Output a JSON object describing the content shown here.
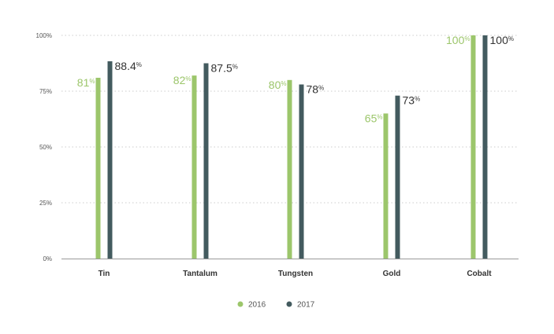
{
  "chart_data": {
    "type": "bar",
    "categories": [
      "Tin",
      "Tantalum",
      "Tungsten",
      "Gold",
      "Cobalt"
    ],
    "series": [
      {
        "name": "2016",
        "color": "#9cc66b",
        "values": [
          81,
          82,
          80,
          65,
          100
        ],
        "labels": [
          "81",
          "82",
          "80",
          "65",
          "100"
        ]
      },
      {
        "name": "2017",
        "color": "#435b5f",
        "values": [
          88.4,
          87.5,
          78,
          73,
          100
        ],
        "labels": [
          "88.4",
          "87.5",
          "78",
          "73",
          "100"
        ]
      }
    ],
    "percent_sign": "%",
    "y_ticks": [
      "0%",
      "25%",
      "50%",
      "75%",
      "100%"
    ],
    "y_tick_values": [
      0,
      25,
      50,
      75,
      100
    ],
    "ylim": [
      0,
      100
    ],
    "grid": true,
    "legend_position": "bottom-center",
    "axis_color": "#999999",
    "grid_color": "#cccccc",
    "label_text_color": "#333333"
  }
}
